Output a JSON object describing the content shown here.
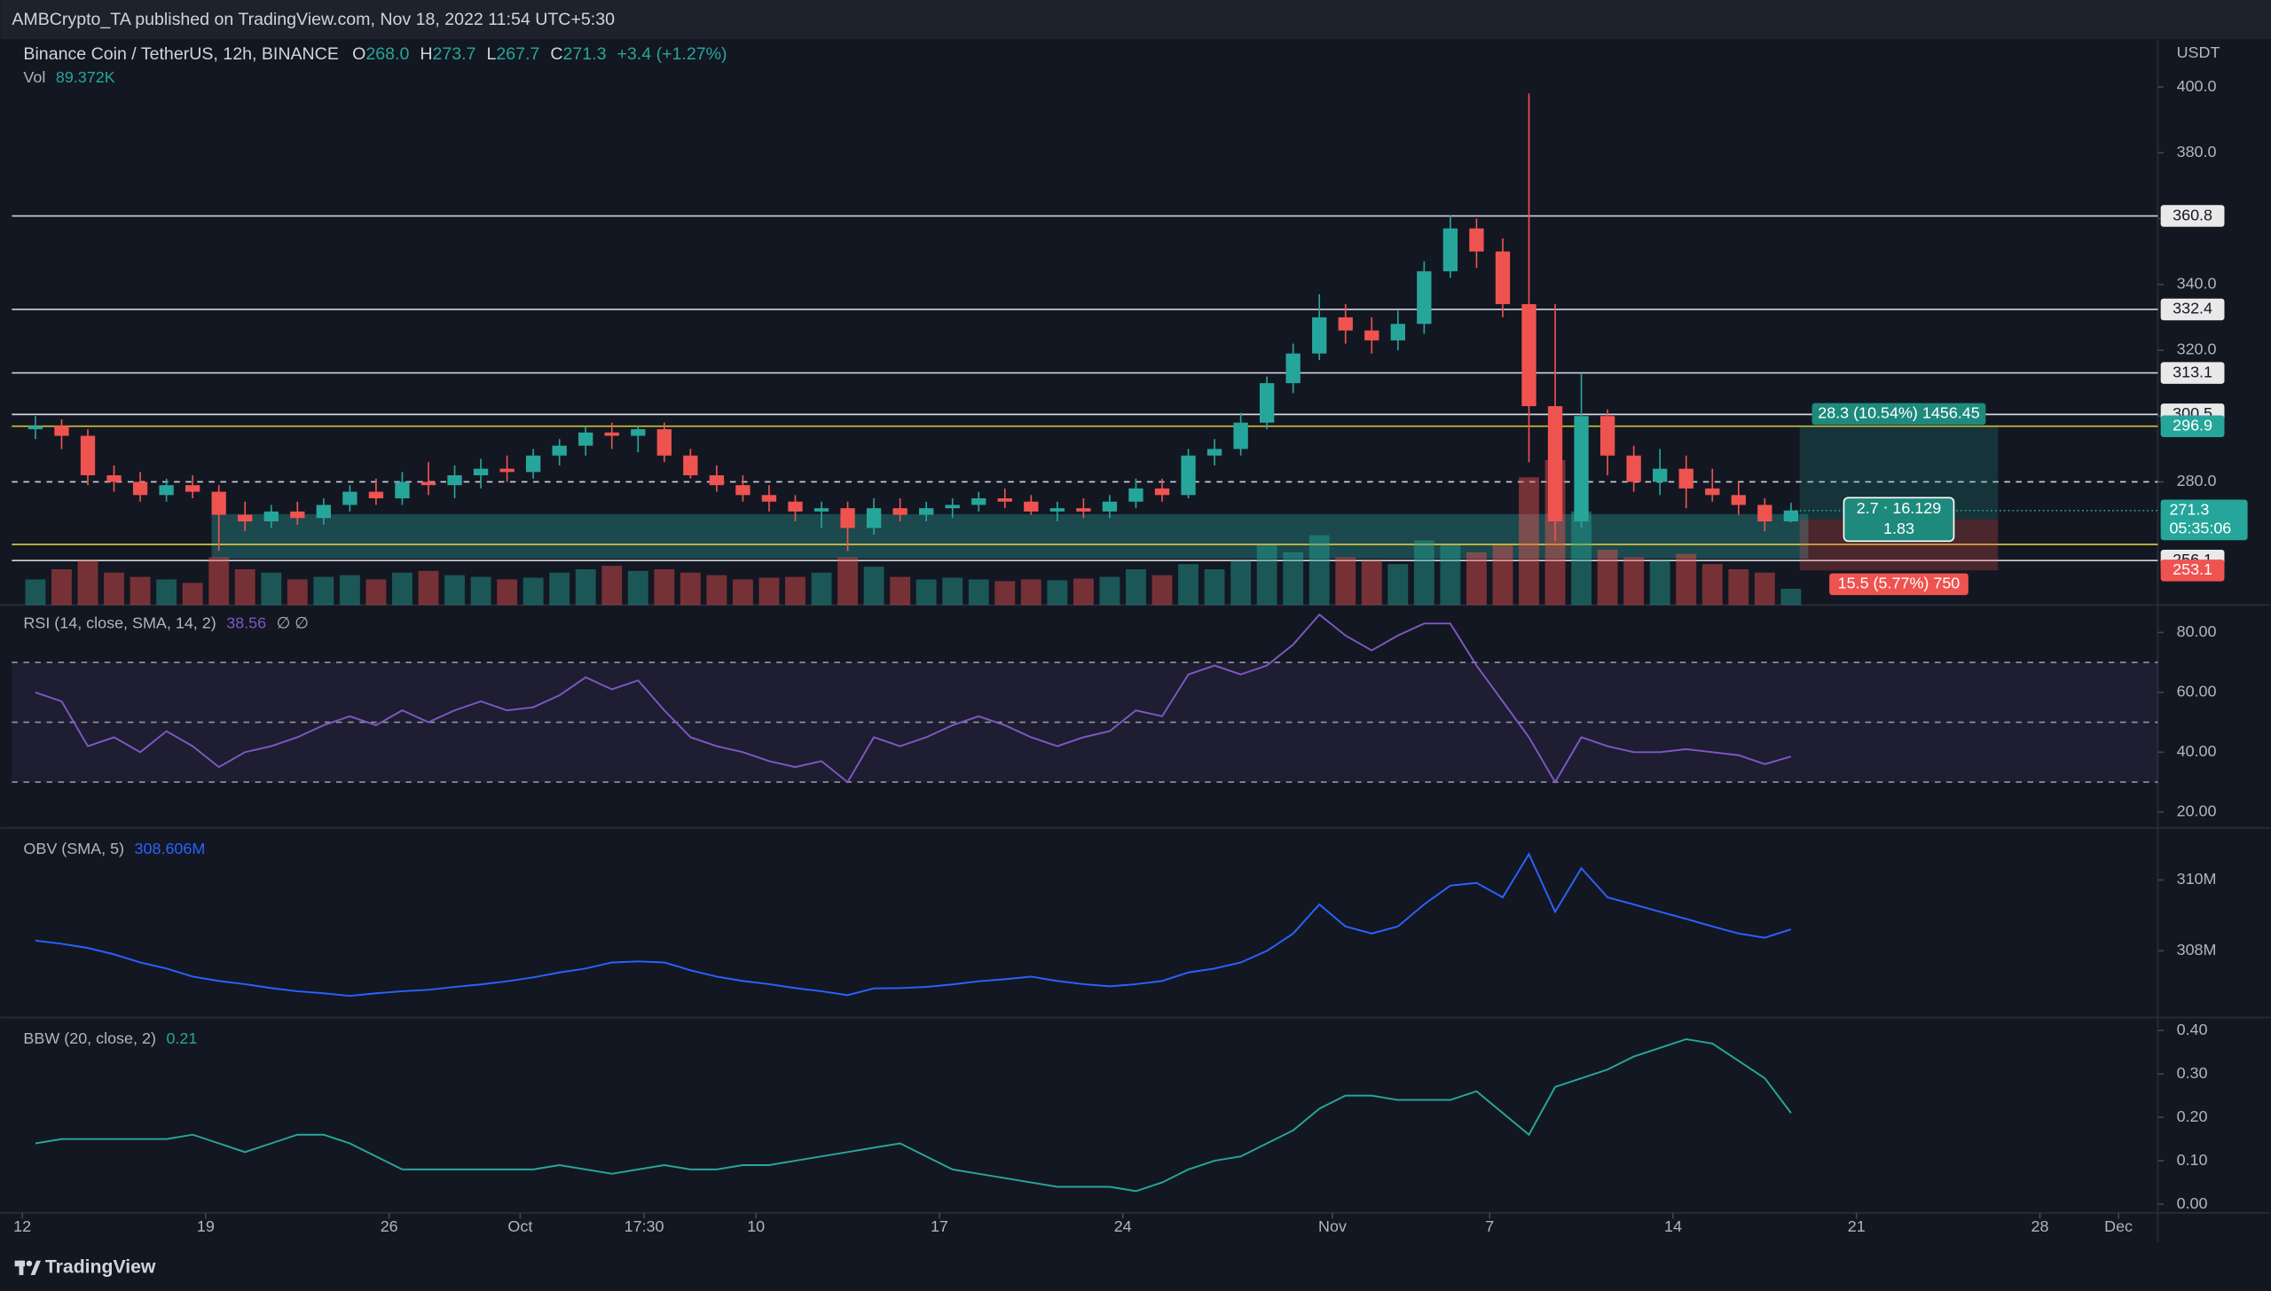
{
  "header": {
    "published": "AMBCrypto_TA published on TradingView.com, Nov 18, 2022 11:54 UTC+5:30"
  },
  "footer": {
    "brand": "TradingView"
  },
  "chart_data": [
    {
      "type": "candlestick",
      "title": "Binance Coin / TetherUS, 12h, BINANCE",
      "ohlc": [
        {
          "key": "O",
          "value": "268.0"
        },
        {
          "key": "H",
          "value": "273.7"
        },
        {
          "key": "L",
          "value": "267.7"
        },
        {
          "key": "C",
          "value": "271.3"
        }
      ],
      "change": "+3.4 (+1.27%)",
      "volume_title": "Vol",
      "volume_value": "89.372K",
      "unit": "USDT",
      "up_color": "#26a69a",
      "down_color": "#ef5350",
      "x": [
        0,
        1,
        2,
        3,
        4,
        5,
        6,
        7,
        8,
        9,
        10,
        11,
        12,
        13,
        14,
        15,
        16,
        17,
        18,
        19,
        20,
        21,
        22,
        23,
        24,
        25,
        26,
        27,
        28,
        29,
        30,
        31,
        32,
        33,
        34,
        35,
        36,
        37,
        38,
        39,
        40,
        41,
        42,
        43,
        44,
        45,
        46,
        47,
        48,
        49,
        50,
        51,
        52,
        53,
        54,
        55,
        56,
        57,
        58,
        59,
        60,
        61,
        62,
        63,
        64,
        65,
        66,
        67
      ],
      "open": [
        296,
        297,
        294,
        282,
        280,
        276,
        279,
        277,
        270,
        268,
        271,
        269,
        273,
        277,
        275,
        280,
        279,
        282,
        284,
        283,
        288,
        291,
        295,
        294,
        296,
        288,
        282,
        279,
        276,
        274,
        271,
        272,
        266,
        272,
        270,
        272,
        273,
        275,
        274,
        271,
        272,
        271,
        274,
        278,
        276,
        288,
        290,
        298,
        310,
        319,
        330,
        326,
        323,
        328,
        344,
        357,
        350,
        334,
        303,
        268,
        300,
        288,
        280,
        284,
        278,
        276,
        273,
        268.0
      ],
      "high": [
        300,
        299,
        296,
        285,
        283,
        281,
        282,
        279,
        274,
        273,
        274,
        275,
        279,
        281,
        283,
        286,
        285,
        287,
        288,
        290,
        293,
        297,
        298,
        297,
        298,
        290,
        285,
        282,
        279,
        276,
        274,
        274,
        275,
        275,
        274,
        275,
        277,
        278,
        276,
        274,
        275,
        276,
        281,
        281,
        290,
        293,
        301,
        312,
        322,
        337,
        334,
        330,
        332,
        347,
        361,
        360,
        354,
        398,
        334,
        313,
        302,
        291,
        290,
        288,
        284,
        280,
        275,
        273.7
      ],
      "low": [
        293,
        290,
        279,
        277,
        274,
        274,
        275,
        259,
        265,
        266,
        267,
        267,
        271,
        273,
        273,
        276,
        275,
        278,
        280,
        281,
        285,
        288,
        290,
        289,
        286,
        281,
        277,
        274,
        271,
        268,
        266,
        259,
        264,
        268,
        268,
        269,
        271,
        272,
        270,
        268,
        269,
        269,
        272,
        274,
        275,
        285,
        288,
        296,
        307,
        317,
        322,
        319,
        320,
        325,
        342,
        345,
        330,
        286,
        262,
        266,
        282,
        277,
        276,
        272,
        274,
        270,
        265,
        267.7
      ],
      "close": [
        297,
        294,
        282,
        280,
        276,
        279,
        277,
        270,
        268,
        271,
        269,
        273,
        277,
        275,
        280,
        279,
        282,
        284,
        283,
        288,
        291,
        295,
        294,
        296,
        288,
        282,
        279,
        276,
        274,
        271,
        272,
        266,
        272,
        270,
        272,
        273,
        275,
        274,
        271,
        272,
        271,
        274,
        278,
        276,
        288,
        290,
        298,
        310,
        319,
        330,
        326,
        323,
        328,
        344,
        357,
        350,
        334,
        303,
        268,
        300,
        288,
        280,
        284,
        278,
        276,
        273,
        268,
        271.3
      ],
      "volume": [
        300,
        420,
        520,
        380,
        330,
        300,
        260,
        560,
        420,
        380,
        300,
        330,
        350,
        300,
        380,
        400,
        350,
        330,
        300,
        320,
        380,
        420,
        460,
        400,
        420,
        380,
        350,
        300,
        320,
        330,
        380,
        560,
        450,
        330,
        300,
        320,
        300,
        280,
        300,
        290,
        310,
        330,
        420,
        350,
        480,
        420,
        520,
        700,
        620,
        820,
        560,
        520,
        480,
        760,
        700,
        620,
        700,
        1500,
        1700,
        1100,
        650,
        560,
        520,
        600,
        480,
        420,
        380,
        190
      ],
      "xlim": [
        -0.4,
        81.5
      ],
      "xticks": [
        {
          "value": 0,
          "label": "12"
        },
        {
          "value": 7,
          "label": "19"
        },
        {
          "value": 14,
          "label": "26"
        },
        {
          "value": 19,
          "label": "Oct"
        },
        {
          "value": 23.73,
          "label": "17:30"
        },
        {
          "value": 28,
          "label": "10"
        },
        {
          "value": 35,
          "label": "17"
        },
        {
          "value": 42,
          "label": "24"
        },
        {
          "value": 50,
          "label": "Nov"
        },
        {
          "value": 56,
          "label": "7"
        },
        {
          "value": 63,
          "label": "14"
        },
        {
          "value": 70,
          "label": "21"
        },
        {
          "value": 77,
          "label": "28"
        },
        {
          "value": 80,
          "label": "Dec"
        }
      ],
      "ylim": [
        242.6,
        414.1
      ],
      "yticks": [
        {
          "value": 280,
          "label": "280.0"
        },
        {
          "value": 300,
          "label": "300.0"
        },
        {
          "value": 320,
          "label": "320.0"
        },
        {
          "value": 340,
          "label": "340.0"
        },
        {
          "value": 360,
          "label": "360.0"
        },
        {
          "value": 380,
          "label": "380.0"
        },
        {
          "value": 400,
          "label": "400.0"
        }
      ],
      "zone": [
        256.7,
        270.2
      ],
      "levels": [
        {
          "value": 360.8,
          "color": "#d1d4dc",
          "tag": true
        },
        {
          "value": 332.4,
          "color": "#d1d4dc",
          "tag": true
        },
        {
          "value": 313.1,
          "color": "#d1d4dc",
          "tag": true
        },
        {
          "value": 300.5,
          "color": "#d1d4dc",
          "tag": true
        },
        {
          "value": 296.9,
          "color": "#d4c13b",
          "tag": false
        },
        {
          "value": 280,
          "color": "#d1d4dc",
          "tag": false,
          "dashed": true
        },
        {
          "value": 261,
          "color": "#d4c13b",
          "tag": false
        },
        {
          "value": 256.1,
          "color": "#d1d4dc",
          "tag": true
        }
      ],
      "last": {
        "value": 271.3,
        "countdown": "05:35:06"
      },
      "position": {
        "target": 296.9,
        "entry": 268.6,
        "stop": 253.1,
        "profit_label": "28.3 (10.54%) 1456.45",
        "stats_label": "2.7 ⋅ 16.129",
        "ratio_label": "1.83",
        "loss_label": "15.5 (5.77%) 750"
      }
    },
    {
      "type": "line",
      "title": "RSI (14, close, SMA, 14, 2)",
      "value_label": "38.56",
      "extra": "∅ ∅",
      "color": "#7e57c2",
      "values": [
        60,
        57,
        42,
        45,
        40,
        47,
        42,
        35,
        40,
        42,
        45,
        49,
        52,
        49,
        54,
        50,
        54,
        57,
        54,
        55,
        59,
        65,
        61,
        64,
        54,
        45,
        42,
        40,
        37,
        35,
        37,
        30,
        45,
        42,
        45,
        49,
        52,
        49,
        45,
        42,
        45,
        47,
        54,
        52,
        66,
        69,
        66,
        69,
        76,
        86,
        79,
        74,
        79,
        83,
        83,
        69,
        57,
        45,
        30,
        45,
        42,
        40,
        40,
        41,
        40,
        39,
        36,
        38.56
      ],
      "ylim": [
        14.7,
        89.2
      ],
      "yticks": [
        {
          "value": 20,
          "label": "20.00"
        },
        {
          "value": 40,
          "label": "40.00"
        },
        {
          "value": 60,
          "label": "60.00"
        },
        {
          "value": 80,
          "label": "80.00"
        }
      ],
      "band": [
        30,
        70
      ],
      "guides": [
        30,
        50,
        70
      ]
    },
    {
      "type": "line",
      "title": "OBV (SMA, 5)",
      "value_label": "308.606M",
      "color": "#2962ff",
      "values": [
        308.29,
        308.2,
        308.08,
        307.9,
        307.67,
        307.5,
        307.27,
        307.15,
        307.06,
        306.95,
        306.86,
        306.8,
        306.73,
        306.8,
        306.86,
        306.9,
        306.98,
        307.05,
        307.14,
        307.25,
        307.39,
        307.5,
        307.67,
        307.7,
        307.67,
        307.45,
        307.27,
        307.15,
        307.06,
        306.95,
        306.86,
        306.75,
        306.94,
        306.95,
        306.98,
        307.05,
        307.14,
        307.2,
        307.27,
        307.15,
        307.06,
        307.0,
        307.06,
        307.15,
        307.39,
        307.5,
        307.67,
        308.0,
        308.49,
        309.31,
        308.69,
        308.49,
        308.69,
        309.31,
        309.84,
        309.92,
        309.51,
        310.73,
        309.1,
        310.33,
        309.51,
        309.31,
        309.1,
        308.9,
        308.69,
        308.49,
        308.37,
        308.606
      ],
      "ylim": [
        306.12,
        311.47
      ],
      "yticks": [
        {
          "value": 308,
          "label": "308M"
        },
        {
          "value": 310,
          "label": "310M"
        }
      ]
    },
    {
      "type": "line",
      "title": "BBW (20, close, 2)",
      "value_label": "0.21",
      "color": "#26a69a",
      "values": [
        0.14,
        0.15,
        0.15,
        0.15,
        0.15,
        0.15,
        0.16,
        0.14,
        0.12,
        0.14,
        0.16,
        0.16,
        0.14,
        0.11,
        0.08,
        0.08,
        0.08,
        0.08,
        0.08,
        0.08,
        0.09,
        0.08,
        0.07,
        0.08,
        0.09,
        0.08,
        0.08,
        0.09,
        0.09,
        0.1,
        0.11,
        0.12,
        0.13,
        0.14,
        0.11,
        0.08,
        0.07,
        0.06,
        0.05,
        0.04,
        0.04,
        0.04,
        0.03,
        0.05,
        0.08,
        0.1,
        0.11,
        0.14,
        0.17,
        0.22,
        0.25,
        0.25,
        0.24,
        0.24,
        0.24,
        0.26,
        0.21,
        0.16,
        0.27,
        0.29,
        0.31,
        0.34,
        0.36,
        0.38,
        0.37,
        0.33,
        0.29,
        0.21
      ],
      "ylim": [
        -0.02,
        0.43
      ],
      "yticks": [
        {
          "value": 0,
          "label": "0.00"
        },
        {
          "value": 0.1,
          "label": "0.10"
        },
        {
          "value": 0.2,
          "label": "0.20"
        },
        {
          "value": 0.3,
          "label": "0.30"
        },
        {
          "value": 0.4,
          "label": "0.40"
        }
      ]
    }
  ]
}
